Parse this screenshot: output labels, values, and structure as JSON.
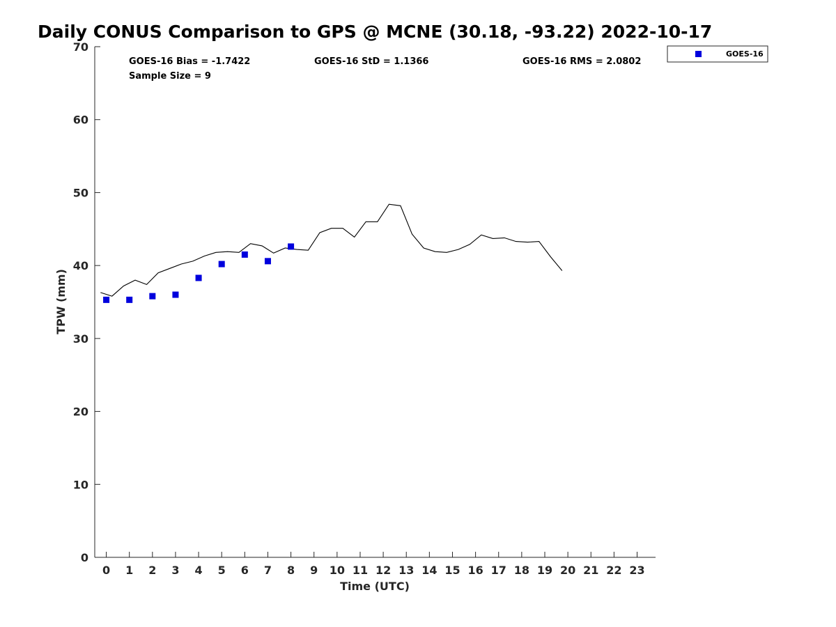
{
  "chart_data": {
    "type": "line",
    "title": "Daily CONUS Comparison to GPS @ MCNE (30.18, -93.22) 2022-10-17",
    "xlabel": "Time (UTC)",
    "ylabel": "TPW (mm)",
    "xlim": [
      -0.5,
      23.8
    ],
    "ylim": [
      0,
      70
    ],
    "x_ticks": [
      "0",
      "1",
      "2",
      "3",
      "4",
      "5",
      "6",
      "7",
      "8",
      "9",
      "10",
      "11",
      "12",
      "13",
      "14",
      "15",
      "16",
      "17",
      "18",
      "19",
      "20",
      "21",
      "22",
      "23"
    ],
    "y_ticks": [
      "0",
      "10",
      "20",
      "30",
      "40",
      "50",
      "60",
      "70"
    ],
    "grid": false,
    "legend": {
      "position": "top-right",
      "entries": [
        "GOES-16"
      ]
    },
    "stats": {
      "bias": "GOES-16 Bias = -1.7422",
      "std": "GOES-16 StD = 1.1366",
      "rms": "GOES-16 RMS = 2.0802",
      "sample": "Sample Size = 9"
    },
    "series": [
      {
        "kind": "line",
        "color": "#000000",
        "x": [
          -0.25,
          0.25,
          0.75,
          1.25,
          1.75,
          2.25,
          2.75,
          3.25,
          3.75,
          4.25,
          4.75,
          5.25,
          5.75,
          6.25,
          6.75,
          7.25,
          7.75,
          8.25,
          8.75,
          9.25,
          9.75,
          10.25,
          10.75,
          11.25,
          11.75,
          12.25,
          12.75,
          13.25,
          13.75,
          14.25,
          14.75,
          15.25,
          15.75,
          16.25,
          16.75,
          17.25,
          17.75,
          18.25,
          18.75,
          19.25,
          19.75
        ],
        "y": [
          36.3,
          35.8,
          37.2,
          38.0,
          37.4,
          39.0,
          39.6,
          40.2,
          40.6,
          41.3,
          41.8,
          41.9,
          41.8,
          43.0,
          42.7,
          41.7,
          42.4,
          42.2,
          42.1,
          44.5,
          45.1,
          45.1,
          43.9,
          46.0,
          46.0,
          48.4,
          48.2,
          44.3,
          42.4,
          41.9,
          41.8,
          42.2,
          42.9,
          44.2,
          43.7,
          43.8,
          43.3,
          43.2,
          43.3,
          41.2,
          39.3
        ]
      },
      {
        "name": "GOES-16",
        "kind": "scatter",
        "marker": "square",
        "color": "#0000dd",
        "x": [
          0,
          1,
          2,
          3,
          4,
          5,
          6,
          7,
          8
        ],
        "y": [
          35.3,
          35.3,
          35.8,
          36.0,
          38.3,
          40.2,
          41.5,
          40.6,
          42.6
        ]
      }
    ]
  }
}
